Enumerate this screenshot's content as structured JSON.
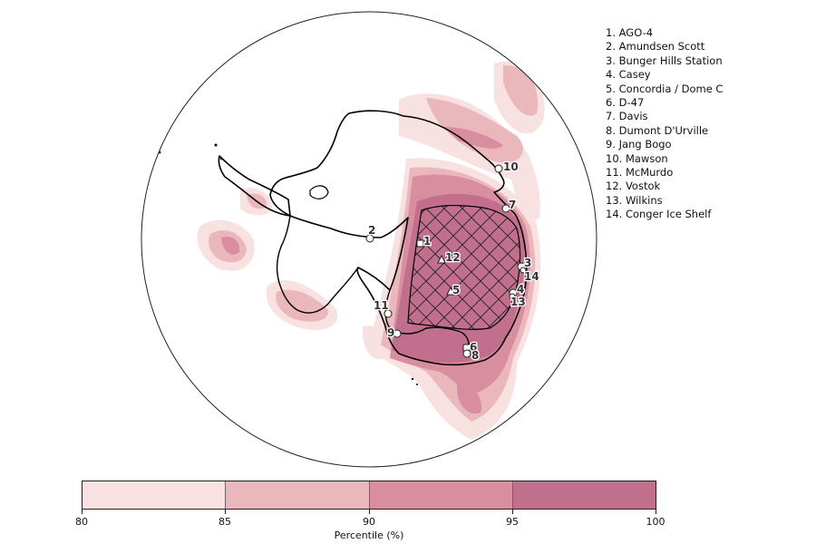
{
  "stations": [
    {
      "num": "1",
      "name": "AGO-4",
      "marker": "square"
    },
    {
      "num": "2",
      "name": "Amundsen Scott",
      "marker": "circle"
    },
    {
      "num": "3",
      "name": "Bunger Hills Station",
      "marker": "circle"
    },
    {
      "num": "4",
      "name": "Casey",
      "marker": "circle"
    },
    {
      "num": "5",
      "name": "Concordia / Dome C",
      "marker": "triangle"
    },
    {
      "num": "6",
      "name": "D-47",
      "marker": "square"
    },
    {
      "num": "7",
      "name": "Davis",
      "marker": "circle"
    },
    {
      "num": "8",
      "name": "Dumont D'Urville",
      "marker": "circle"
    },
    {
      "num": "9",
      "name": "Jang Bogo",
      "marker": "circle"
    },
    {
      "num": "10",
      "name": "Mawson",
      "marker": "circle"
    },
    {
      "num": "11",
      "name": "McMurdo",
      "marker": "circle"
    },
    {
      "num": "12",
      "name": "Vostok",
      "marker": "triangle"
    },
    {
      "num": "13",
      "name": "Wilkins",
      "marker": "circle"
    },
    {
      "num": "14",
      "name": "Conger Ice Shelf",
      "marker": "circle"
    }
  ],
  "colorbar": {
    "label": "Percentile (%)",
    "ticks": [
      "80",
      "85",
      "90",
      "95",
      "100"
    ],
    "colors": [
      "#f8e1e1",
      "#eab7bd",
      "#d88e9f",
      "#c26f8d"
    ]
  },
  "map_colors": {
    "land_outline": "#000000",
    "hatch": "#222222"
  }
}
